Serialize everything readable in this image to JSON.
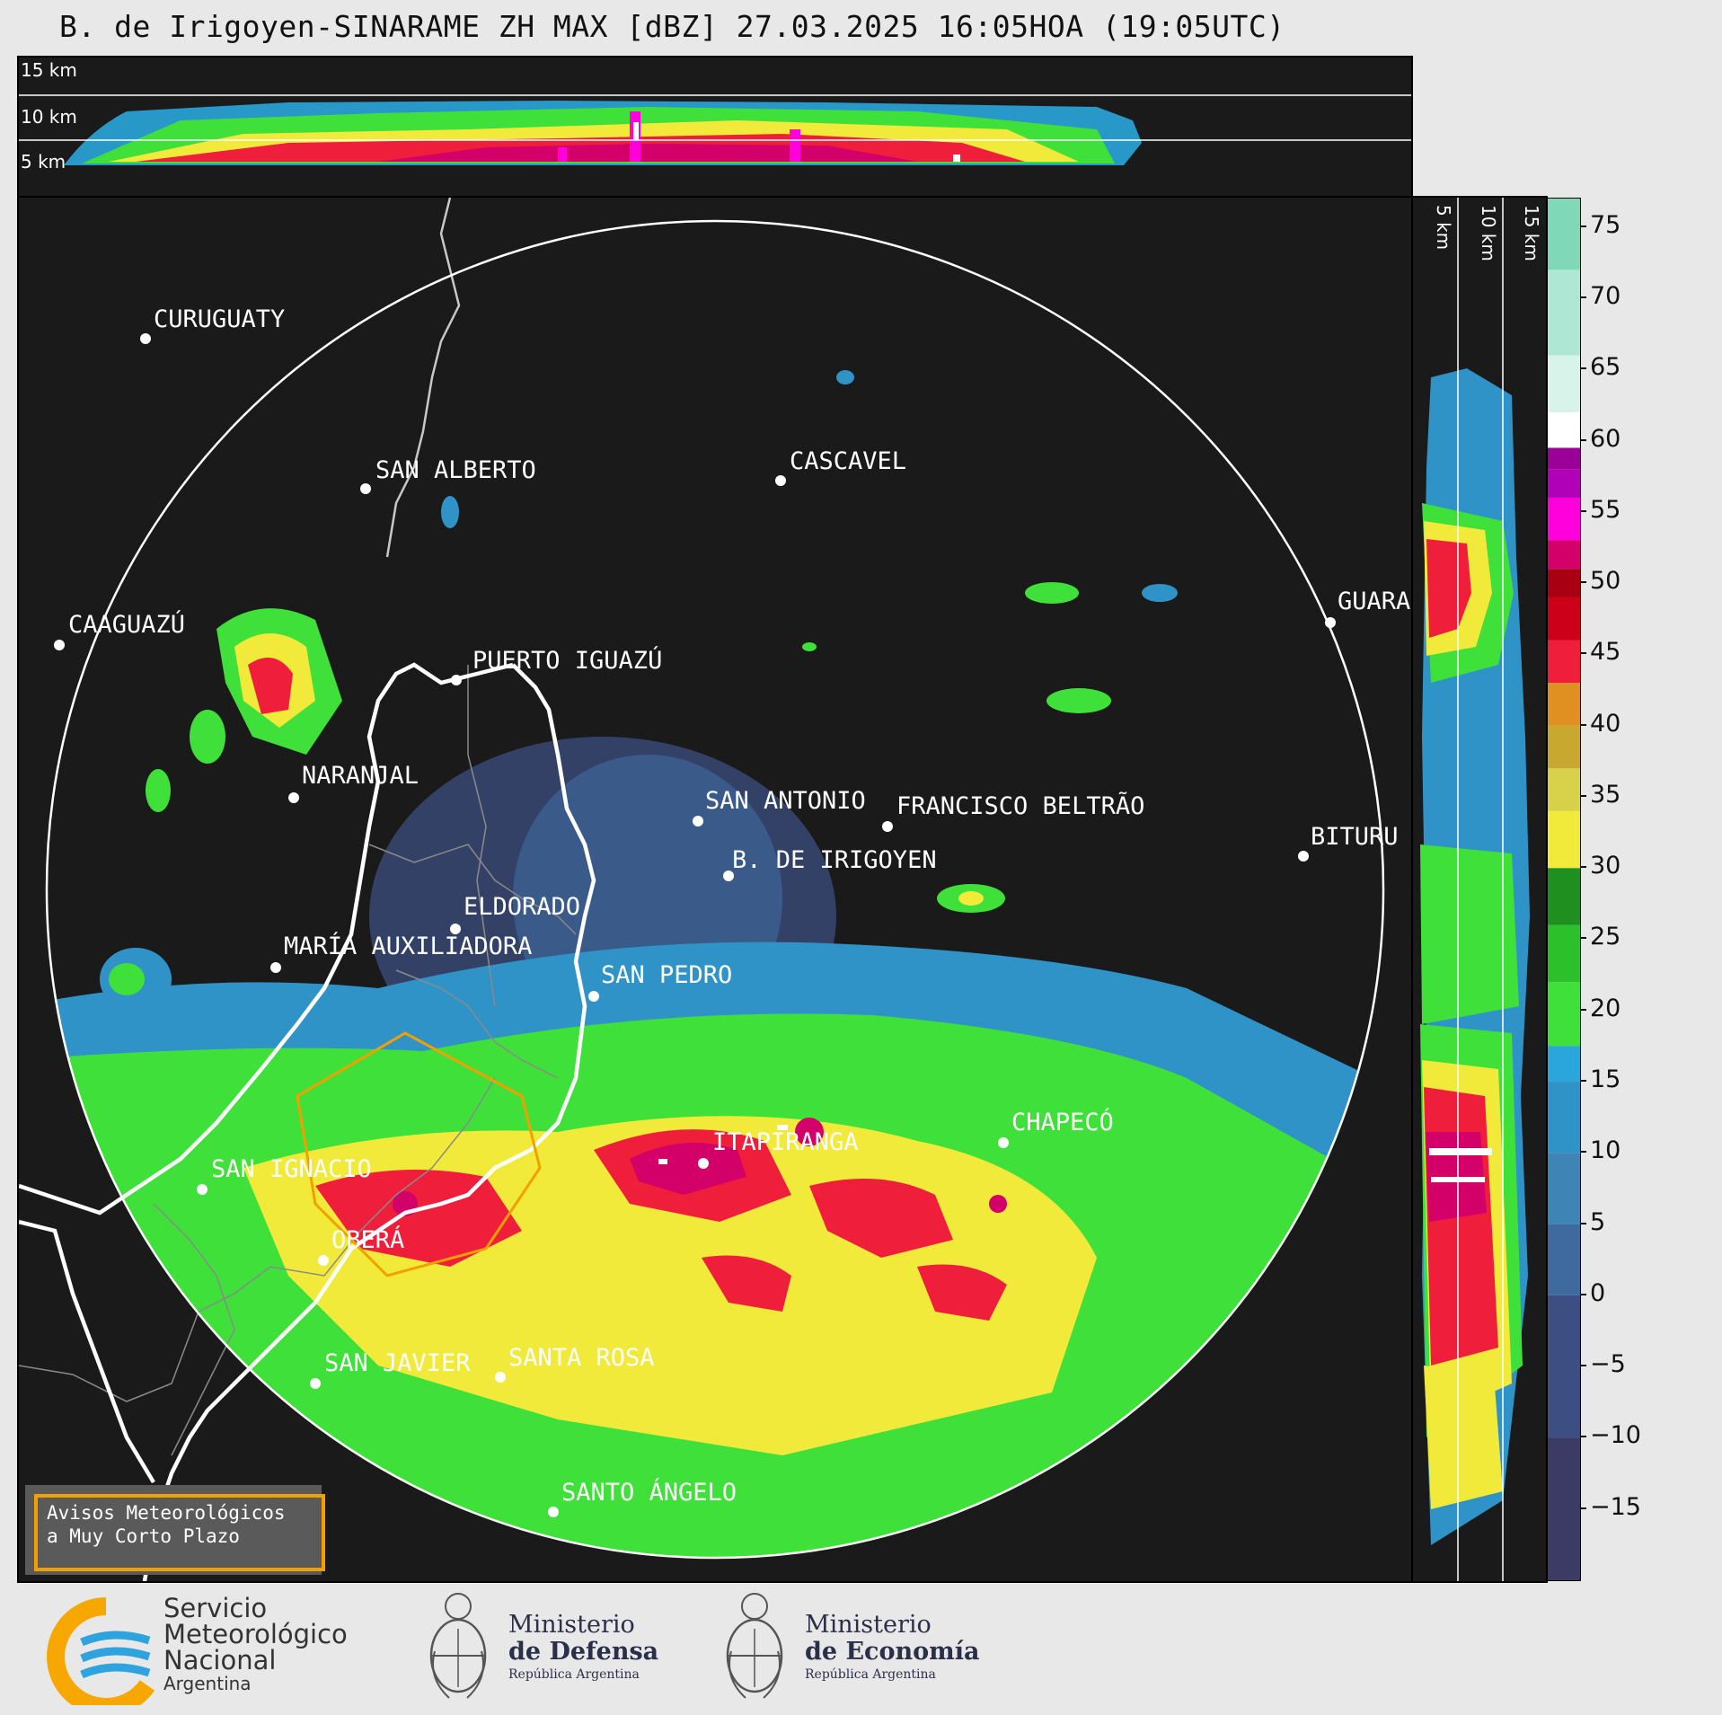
{
  "title": "B. de Irigoyen-SINARAME ZH MAX [dBZ] 27.03.2025 16:05HOA (19:05UTC)",
  "top_panel": {
    "altitude_labels": [
      "15 km",
      "10 km",
      "5 km"
    ]
  },
  "side_panel": {
    "altitude_labels": [
      "5 km",
      "10 km",
      "15 km"
    ]
  },
  "colorbar": {
    "unit": "dBZ",
    "ticks": [
      "75",
      "70",
      "65",
      "60",
      "55",
      "50",
      "45",
      "40",
      "35",
      "30",
      "25",
      "20",
      "15",
      "10",
      "5",
      "0",
      "−5",
      "−10",
      "−15"
    ],
    "min": -20,
    "max": 77,
    "stops": [
      {
        "from": -20,
        "color": "#3b3b66"
      },
      {
        "from": -10,
        "color": "#3d4f82"
      },
      {
        "from": 0,
        "color": "#3f6aa0"
      },
      {
        "from": 5,
        "color": "#3e84b5"
      },
      {
        "from": 10,
        "color": "#2f93c8"
      },
      {
        "from": 15,
        "color": "#2aa6dd"
      },
      {
        "from": 17.5,
        "color": "#3fe03a"
      },
      {
        "from": 22,
        "color": "#2cc02a"
      },
      {
        "from": 26,
        "color": "#1f8f1f"
      },
      {
        "from": 30,
        "color": "#f2ea3a"
      },
      {
        "from": 34,
        "color": "#d8d24a"
      },
      {
        "from": 37,
        "color": "#c8a82e"
      },
      {
        "from": 40,
        "color": "#e09020"
      },
      {
        "from": 43,
        "color": "#ef1e3a"
      },
      {
        "from": 46,
        "color": "#cc0018"
      },
      {
        "from": 49,
        "color": "#a80012"
      },
      {
        "from": 51,
        "color": "#d4006a"
      },
      {
        "from": 53,
        "color": "#ff00dd"
      },
      {
        "from": 56,
        "color": "#b000b8"
      },
      {
        "from": 58,
        "color": "#9a0098"
      },
      {
        "from": 59.5,
        "color": "#ffffff"
      },
      {
        "from": 62,
        "color": "#d8f4ea"
      },
      {
        "from": 66,
        "color": "#aee8d4"
      },
      {
        "from": 72,
        "color": "#7fd8b8"
      }
    ]
  },
  "map": {
    "colors": {
      "background": "#1a1a1a",
      "radar_ring": "#ffffff",
      "country_border": "#ffffff",
      "state_border": "#c8c8c8",
      "district_border": "#8a8a8a",
      "alert_polygon": "#f2a000"
    },
    "cities": [
      {
        "name": "CURUGUATY"
      },
      {
        "name": "SAN ALBERTO"
      },
      {
        "name": "CASCAVEL"
      },
      {
        "name": "CAAGUAZÚ"
      },
      {
        "name": "GUARA"
      },
      {
        "name": "PUERTO IGUAZÚ"
      },
      {
        "name": "NARANJAL"
      },
      {
        "name": "SAN ANTONIO"
      },
      {
        "name": "FRANCISCO BELTRÃO"
      },
      {
        "name": "B. DE IRIGOYEN"
      },
      {
        "name": "BITURU"
      },
      {
        "name": "ELDORADO"
      },
      {
        "name": "MARÍA AUXILIADORA"
      },
      {
        "name": "SAN PEDRO"
      },
      {
        "name": "ITAPIRANGA"
      },
      {
        "name": "CHAPECÓ"
      },
      {
        "name": "SAN IGNACIO"
      },
      {
        "name": "OBERÁ"
      },
      {
        "name": "SAN JAVIER"
      },
      {
        "name": "SANTA ROSA"
      },
      {
        "name": "SANTO ÁNGELO"
      }
    ]
  },
  "alert_box": {
    "line1": "Avisos Meteorológicos",
    "line2": "a Muy Corto Plazo"
  },
  "footer": {
    "smn": {
      "line1": "Servicio",
      "line2": "Meteorológico",
      "line3": "Nacional",
      "line4": "Argentina"
    },
    "defensa": {
      "line1": "Ministerio",
      "line2": "de Defensa",
      "line3": "República Argentina"
    },
    "economia": {
      "line1": "Ministerio",
      "line2": "de Economía",
      "line3": "República Argentina"
    }
  }
}
